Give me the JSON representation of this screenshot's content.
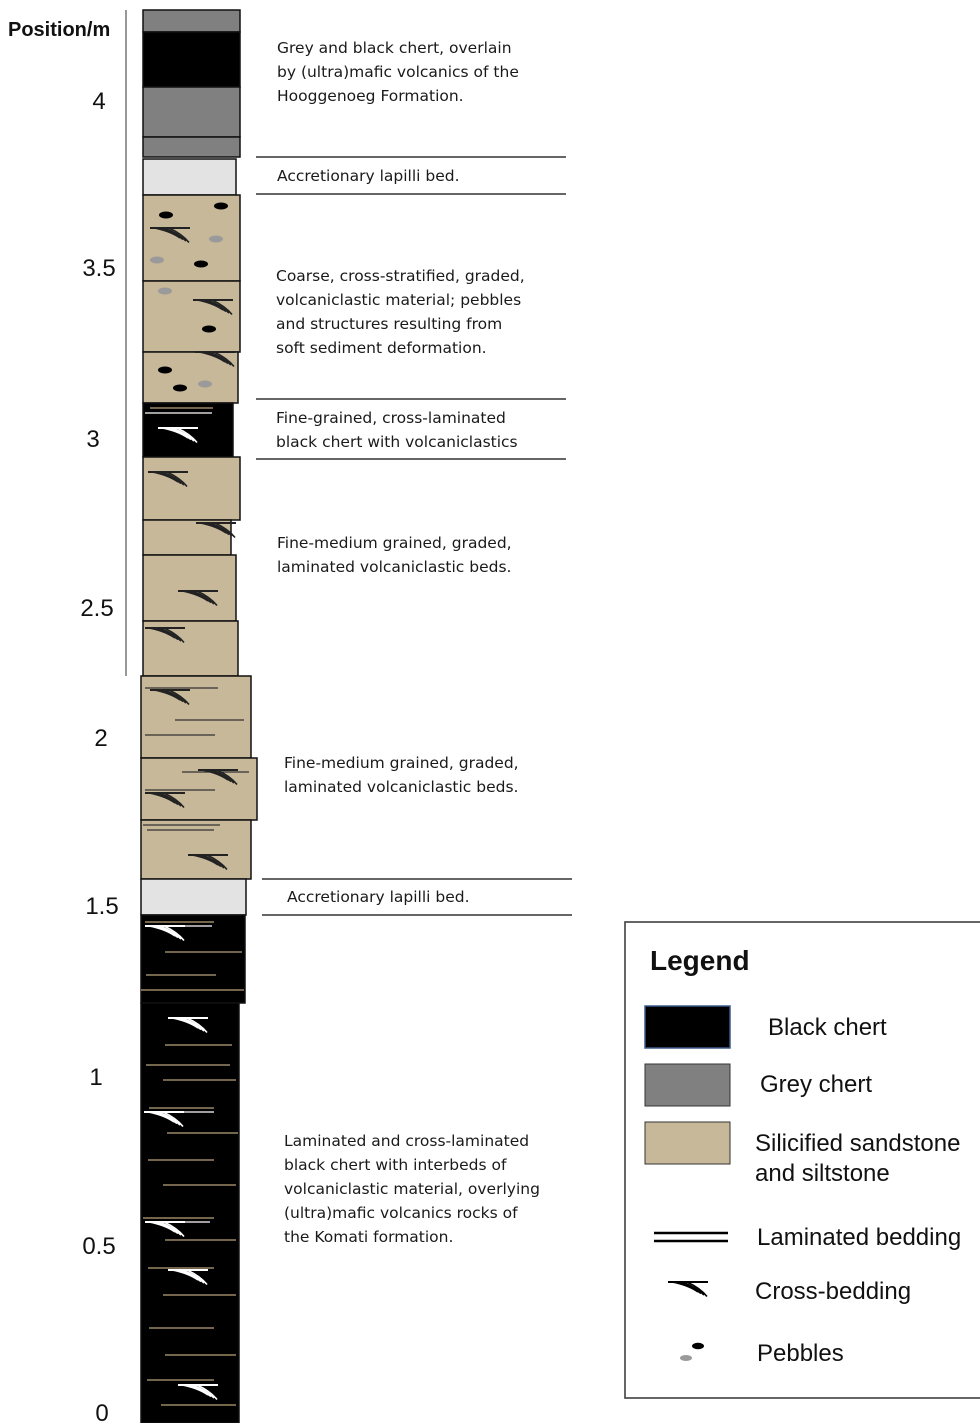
{
  "axis": {
    "title": "Position/m",
    "ticks": [
      "4",
      "3.5",
      "3",
      "2.5",
      "2",
      "1.5",
      "1",
      "0.5",
      "0"
    ]
  },
  "descriptions": [
    [
      "Grey and black chert, overlain",
      "by (ultra)mafic volcanics of the",
      "Hooggenoeg Formation."
    ],
    [
      "Accretionary lapilli bed."
    ],
    [
      "Coarse, cross-stratified, graded,",
      "volcaniclastic material; pebbles",
      "and structures resulting from",
      "soft sediment deformation."
    ],
    [
      "Fine-grained, cross-laminated",
      "black chert with volcaniclastics"
    ],
    [
      "Fine-medium grained, graded,",
      "laminated volcaniclastic beds."
    ],
    [
      "Fine-medium grained, graded,",
      "laminated volcaniclastic beds."
    ],
    [
      "Accretionary lapilli bed."
    ],
    [
      "Laminated and cross-laminated",
      "black chert with interbeds of",
      "volcaniclastic material, overlying",
      "(ultra)mafic volcanics rocks of",
      "the Komati formation."
    ]
  ],
  "legend": {
    "title": "Legend",
    "items": [
      {
        "icon": "black-chert-swatch",
        "label": [
          "Black chert"
        ]
      },
      {
        "icon": "grey-chert-swatch",
        "label": [
          "Grey chert"
        ]
      },
      {
        "icon": "sandstone-swatch",
        "label": [
          "Silicified sandstone",
          "and siltstone"
        ]
      },
      {
        "icon": "laminated-bedding-icon",
        "label": [
          "Laminated bedding"
        ]
      },
      {
        "icon": "cross-bedding-icon",
        "label": [
          "Cross-bedding"
        ]
      },
      {
        "icon": "pebbles-icon",
        "label": [
          "Pebbles"
        ]
      }
    ]
  },
  "colors": {
    "black_chert": "#000000",
    "grey_chert": "#808080",
    "sandstone": "#c7b899",
    "lapilli": "#e3e3e3",
    "lamina_tan": "#b8a47a",
    "pebble_grey": "#9a9a9a"
  }
}
